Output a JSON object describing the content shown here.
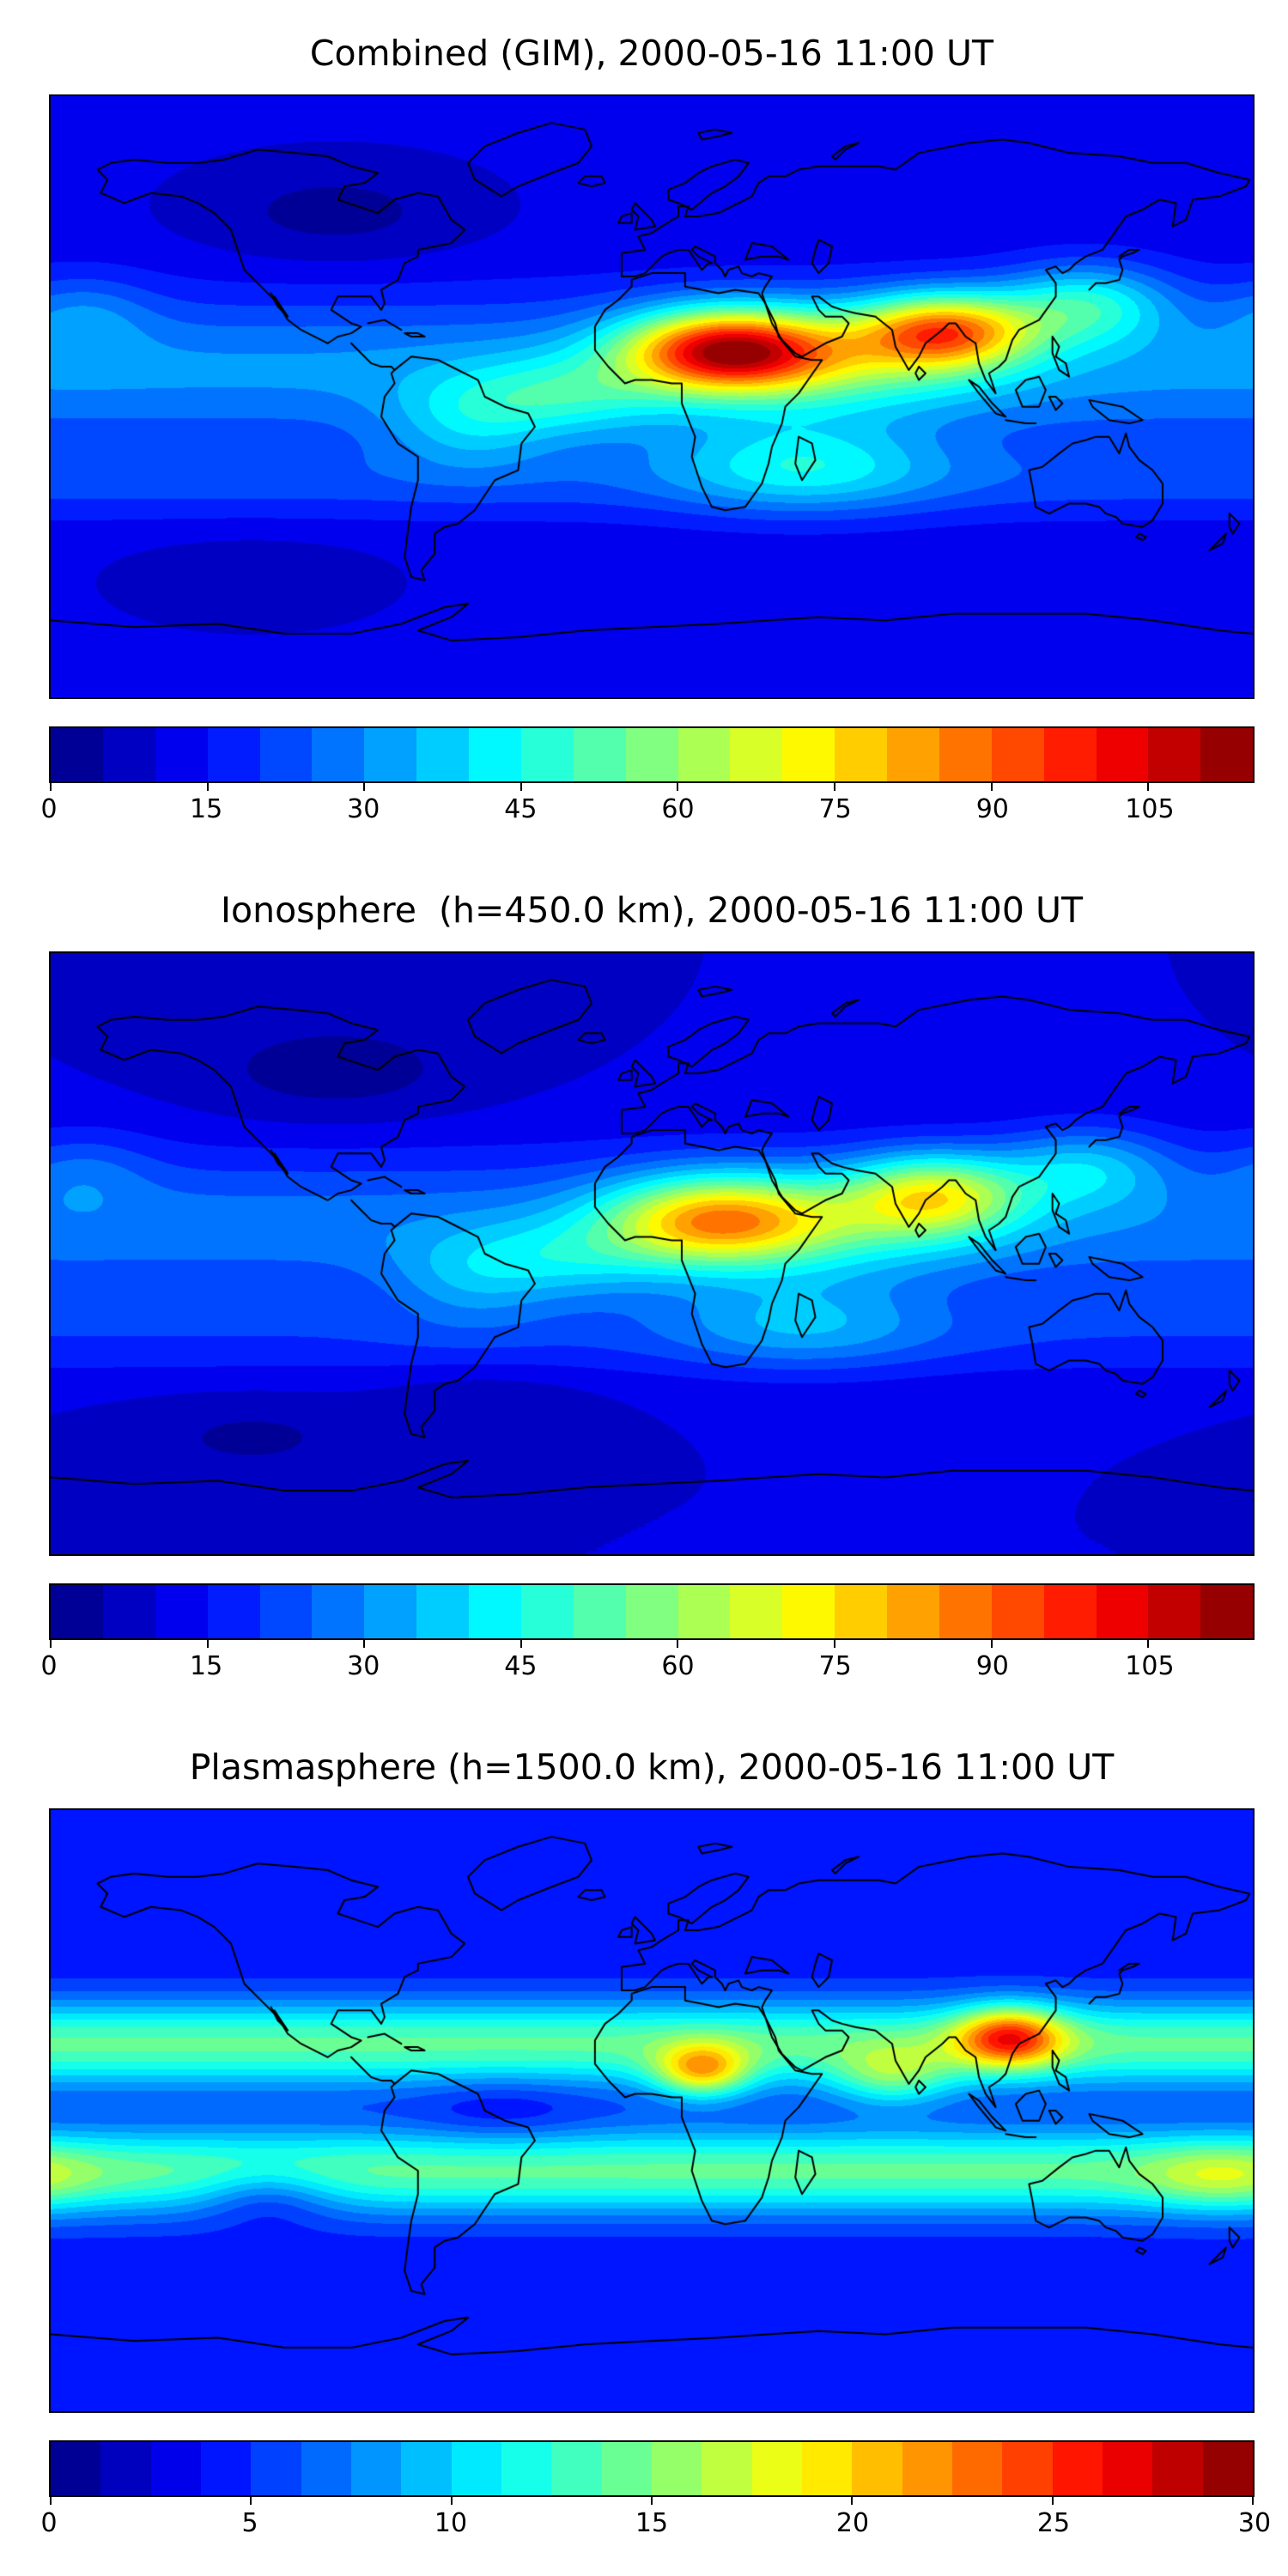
{
  "page": {
    "background": "#ffffff"
  },
  "chart_data": [
    {
      "type": "heatmap",
      "title": "Combined (GIM), 2000-05-16 11:00 UT",
      "projection": "equirectangular",
      "x_range": [
        -180,
        180
      ],
      "y_range": [
        -90,
        90
      ],
      "colormap": "jet",
      "colorbar": {
        "orientation": "horizontal",
        "vmin": 0,
        "vmax": 115,
        "level_step": 5,
        "ticks": [
          0,
          15,
          30,
          45,
          60,
          75,
          90,
          105
        ]
      },
      "field": {
        "base": 11,
        "blobs": [
          {
            "amp": 20,
            "lon": 0,
            "lat": 8,
            "slon": 0,
            "slat": 22
          },
          {
            "amp": 72,
            "lon": 22,
            "lat": 14,
            "slon": 30,
            "slat": 12
          },
          {
            "amp": 58,
            "lon": 88,
            "lat": 20,
            "slon": 26,
            "slat": 11
          },
          {
            "amp": 25,
            "lon": 55,
            "lat": 12,
            "slon": 45,
            "slat": 15
          },
          {
            "amp": 18,
            "lon": -25,
            "lat": 0,
            "slon": 30,
            "slat": 12
          },
          {
            "amp": 28,
            "lon": 130,
            "lat": 28,
            "slon": 25,
            "slat": 12
          },
          {
            "amp": 15,
            "lon": -55,
            "lat": -8,
            "slon": 25,
            "slat": 14
          },
          {
            "amp": 22,
            "lon": 45,
            "lat": -20,
            "slon": 40,
            "slat": 14
          },
          {
            "amp": 10,
            "lon": 0,
            "lat": -25,
            "slon": 0,
            "slat": 12
          },
          {
            "amp": -8,
            "lon": -95,
            "lat": 55,
            "slon": 40,
            "slat": 15
          },
          {
            "amp": -6,
            "lon": -120,
            "lat": -55,
            "slon": 35,
            "slat": 12
          },
          {
            "amp": 10,
            "lon": -170,
            "lat": 25,
            "slon": 20,
            "slat": 12
          }
        ]
      }
    },
    {
      "type": "heatmap",
      "title": "Ionosphere  (h=450.0 km), 2000-05-16 11:00 UT",
      "projection": "equirectangular",
      "x_range": [
        -180,
        180
      ],
      "y_range": [
        -90,
        90
      ],
      "colormap": "jet",
      "colorbar": {
        "orientation": "horizontal",
        "vmin": 0,
        "vmax": 115,
        "level_step": 5,
        "ticks": [
          0,
          15,
          30,
          45,
          60,
          75,
          90,
          105
        ]
      },
      "field": {
        "base": 10,
        "blobs": [
          {
            "amp": 18,
            "lon": 0,
            "lat": 8,
            "slon": 0,
            "slat": 22
          },
          {
            "amp": 48,
            "lon": 18,
            "lat": 10,
            "slon": 32,
            "slat": 13
          },
          {
            "amp": 42,
            "lon": 85,
            "lat": 18,
            "slon": 26,
            "slat": 12
          },
          {
            "amp": 20,
            "lon": 50,
            "lat": 10,
            "slon": 45,
            "slat": 15
          },
          {
            "amp": 14,
            "lon": -25,
            "lat": -2,
            "slon": 30,
            "slat": 12
          },
          {
            "amp": 20,
            "lon": 130,
            "lat": 26,
            "slon": 25,
            "slat": 12
          },
          {
            "amp": 12,
            "lon": -55,
            "lat": -8,
            "slon": 25,
            "slat": 14
          },
          {
            "amp": 16,
            "lon": 45,
            "lat": -20,
            "slon": 40,
            "slat": 14
          },
          {
            "amp": 8,
            "lon": 0,
            "lat": -25,
            "slon": 0,
            "slat": 12
          },
          {
            "amp": -8,
            "lon": -95,
            "lat": 55,
            "slon": 40,
            "slat": 15
          },
          {
            "amp": -6,
            "lon": -120,
            "lat": -55,
            "slon": 35,
            "slat": 12
          },
          {
            "amp": -5,
            "lon": -50,
            "lat": -45,
            "slon": 30,
            "slat": 10
          },
          {
            "amp": 8,
            "lon": -170,
            "lat": 25,
            "slon": 20,
            "slat": 12
          }
        ]
      }
    },
    {
      "type": "heatmap",
      "title": "Plasmasphere (h=1500.0 km), 2000-05-16 11:00 UT",
      "projection": "equirectangular",
      "x_range": [
        -180,
        180
      ],
      "y_range": [
        -90,
        90
      ],
      "colormap": "jet",
      "colorbar": {
        "orientation": "horizontal",
        "vmin": 0,
        "vmax": 30,
        "level_step": 1.25,
        "ticks": [
          0,
          5,
          10,
          15,
          20,
          25,
          30
        ]
      },
      "field": {
        "base": 4,
        "blobs": [
          {
            "amp": 10,
            "lon": 0,
            "lat": 20,
            "slon": 0,
            "slat": 13
          },
          {
            "amp": 10,
            "lon": 0,
            "lat": -18,
            "slon": 0,
            "slat": 13
          },
          {
            "amp": 13,
            "lon": 107,
            "lat": 22,
            "slon": 16,
            "slat": 9
          },
          {
            "amp": 11,
            "lon": 15,
            "lat": 12,
            "slon": 14,
            "slat": 8
          },
          {
            "amp": 6,
            "lon": 72,
            "lat": 10,
            "slon": 18,
            "slat": 9
          },
          {
            "amp": 4,
            "lon": 170,
            "lat": -20,
            "slon": 22,
            "slat": 10
          },
          {
            "amp": -4,
            "lon": -115,
            "lat": -25,
            "slon": 20,
            "slat": 9
          },
          {
            "amp": -2,
            "lon": -45,
            "lat": 0,
            "slon": 25,
            "slat": 10
          }
        ]
      }
    }
  ]
}
